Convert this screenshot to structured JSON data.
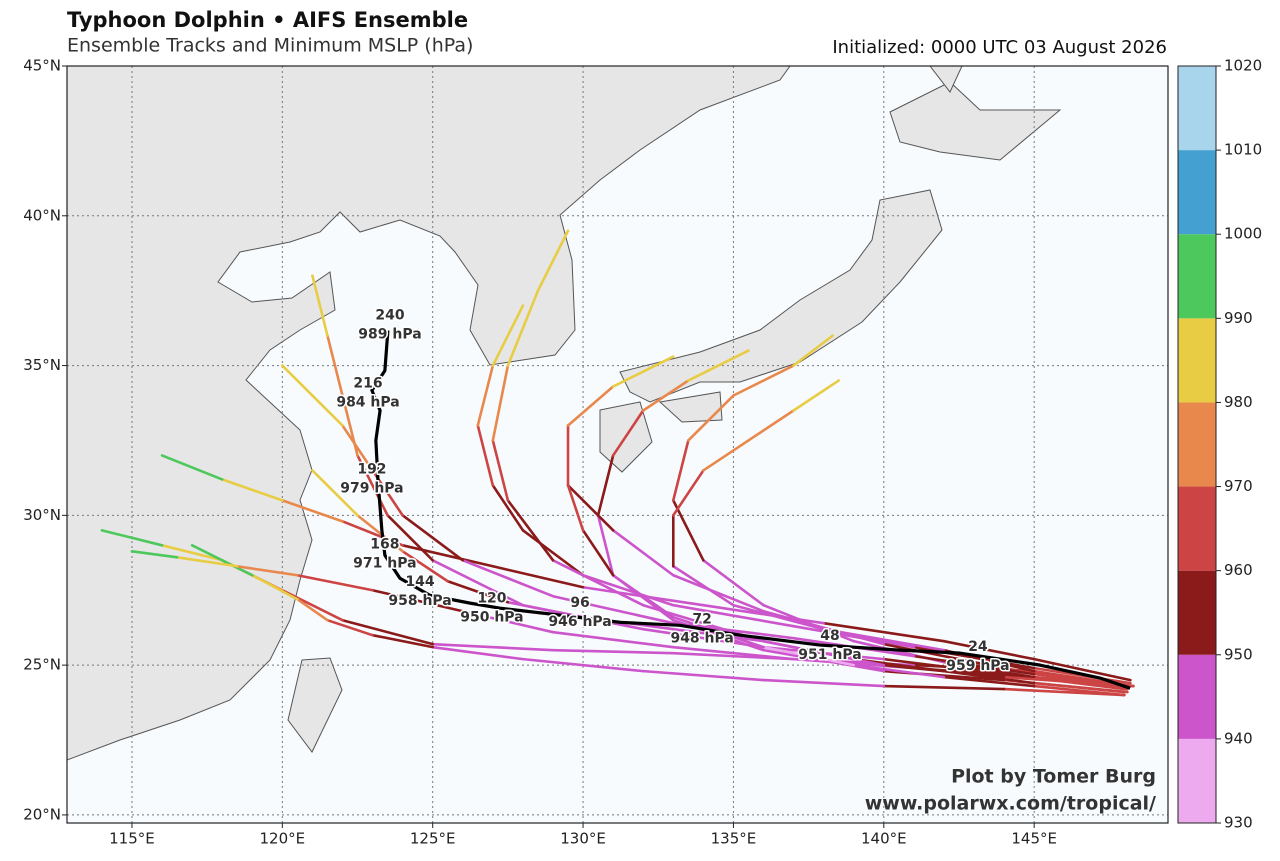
{
  "chart_data": {
    "type": "track-map",
    "title": "Typhoon Dolphin • AIFS Ensemble",
    "subtitle": "Ensemble Tracks and Minimum MSLP (hPa)",
    "initialized": "Initialized: 0000 UTC 03 August 2026",
    "credit": [
      "Plot by Tomer Burg",
      "www.polarwx.com/tropical/"
    ],
    "xlim": [
      112.84,
      149.45
    ],
    "ylim": [
      19.73,
      45
    ],
    "xticks": [
      {
        "value": 115,
        "label": "115°E"
      },
      {
        "value": 120,
        "label": "120°E"
      },
      {
        "value": 125,
        "label": "125°E"
      },
      {
        "value": 130,
        "label": "130°E"
      },
      {
        "value": 135,
        "label": "135°E"
      },
      {
        "value": 140,
        "label": "140°E"
      },
      {
        "value": 145,
        "label": "145°E"
      }
    ],
    "yticks": [
      {
        "value": 20,
        "label": "20°N"
      },
      {
        "value": 25,
        "label": "25°N"
      },
      {
        "value": 30,
        "label": "30°N"
      },
      {
        "value": 35,
        "label": "35°N"
      },
      {
        "value": 40,
        "label": "40°N"
      },
      {
        "value": 45,
        "label": "45°N"
      }
    ],
    "grid": true,
    "colorbar": {
      "levels": [
        930,
        940,
        950,
        960,
        970,
        980,
        990,
        1000,
        1010,
        1020
      ],
      "colors": [
        "#eeaaee",
        "#cc55cc",
        "#8b1a1a",
        "#cc4444",
        "#e8884c",
        "#e8cc44",
        "#4cc85c",
        "#44a0d0",
        "#a8d4ec"
      ]
    },
    "members": [
      {
        "lon": [
          148.3,
          145,
          141,
          137,
          133,
          129,
          125,
          122,
          120,
          118,
          116,
          114
        ],
        "lat": [
          24.3,
          24.8,
          25.0,
          25.2,
          25.4,
          25.5,
          25.7,
          26.5,
          27.5,
          28.5,
          29,
          29.5
        ],
        "mslp": [
          962,
          955,
          948,
          944,
          942,
          945,
          952,
          962,
          975,
          985,
          992,
          995
        ]
      },
      {
        "lon": [
          148.0,
          144,
          140,
          136,
          132,
          128,
          125,
          123.5,
          122.5,
          122,
          121.5,
          121
        ],
        "lat": [
          24.2,
          24.7,
          25.2,
          25.6,
          26.2,
          27.0,
          28.5,
          30,
          32,
          34,
          36,
          38
        ],
        "mslp": [
          960,
          954,
          947,
          943,
          941,
          944,
          955,
          965,
          972,
          978,
          983,
          988
        ]
      },
      {
        "lon": [
          148.2,
          145,
          141,
          137,
          133,
          130,
          128,
          127,
          126.5,
          127,
          128
        ],
        "lat": [
          24.4,
          24.9,
          25.6,
          26.3,
          27,
          28,
          29.5,
          31,
          33,
          35,
          37
        ],
        "mslp": [
          961,
          953,
          946,
          942,
          945,
          950,
          958,
          966,
          974,
          981,
          987
        ]
      },
      {
        "lon": [
          148.1,
          144,
          140,
          136,
          133,
          131,
          130.5,
          131,
          132,
          133.5,
          135.5
        ],
        "lat": [
          24.1,
          24.5,
          24.8,
          25.5,
          26.5,
          28,
          30,
          32,
          33.5,
          34.5,
          35.5
        ],
        "mslp": [
          962,
          951,
          944,
          940,
          942,
          948,
          958,
          968,
          976,
          982,
          988
        ]
      },
      {
        "lon": [
          148.3,
          145,
          142,
          139,
          136,
          134,
          133,
          133.5,
          135,
          137,
          138.3
        ],
        "lat": [
          24.3,
          24.6,
          25.1,
          25.8,
          27,
          28.5,
          30.5,
          32.5,
          34,
          35,
          36
        ],
        "mslp": [
          963,
          952,
          945,
          941,
          943,
          950,
          960,
          970,
          978,
          984,
          986
        ]
      },
      {
        "lon": [
          148.0,
          144,
          140,
          136,
          132,
          128,
          125,
          123,
          121.5,
          120.5,
          119,
          117
        ],
        "lat": [
          24.0,
          24.2,
          24.3,
          24.5,
          24.8,
          25.2,
          25.6,
          26,
          26.5,
          27.2,
          28,
          29
        ],
        "mslp": [
          960,
          952,
          944,
          940,
          941,
          946,
          955,
          966,
          978,
          986,
          992,
          996
        ]
      },
      {
        "lon": [
          148.2,
          145,
          142,
          138,
          134,
          130,
          127,
          124,
          122,
          120,
          118,
          116
        ],
        "lat": [
          24.5,
          25.2,
          25.8,
          26.4,
          27,
          27.6,
          28.3,
          29,
          29.8,
          30.5,
          31.2,
          32
        ],
        "mslp": [
          959,
          954,
          950,
          947,
          948,
          952,
          958,
          966,
          975,
          984,
          990,
          994
        ]
      },
      {
        "lon": [
          148.1,
          144,
          140,
          136,
          133,
          131,
          129.5,
          129.5,
          131,
          133
        ],
        "lat": [
          24.2,
          24.9,
          25.7,
          26.8,
          28,
          29.5,
          31,
          33,
          34.3,
          35.3
        ],
        "mslp": [
          961,
          953,
          946,
          943,
          947,
          955,
          965,
          974,
          980,
          984
        ]
      },
      {
        "lon": [
          148.0,
          145,
          142,
          139,
          136,
          133,
          130,
          127.5,
          125.5,
          124,
          122.5,
          121
        ],
        "lat": [
          24.1,
          24.4,
          24.8,
          25.2,
          25.8,
          26.2,
          26.6,
          27.1,
          27.8,
          28.8,
          30,
          31.5
        ],
        "mslp": [
          962,
          957,
          952,
          948,
          946,
          945,
          947,
          953,
          962,
          972,
          982,
          990
        ]
      },
      {
        "lon": [
          148.2,
          145,
          141,
          137,
          133,
          129,
          126,
          124,
          123,
          122,
          121,
          120
        ],
        "lat": [
          24.3,
          24.7,
          25.3,
          25.9,
          26.4,
          27.3,
          28.5,
          30,
          31.5,
          33,
          34,
          35
        ],
        "mslp": [
          960,
          953,
          946,
          942,
          942,
          947,
          956,
          966,
          973,
          980,
          985,
          988
        ]
      },
      {
        "lon": [
          148.3,
          145,
          141,
          137,
          133,
          129,
          126,
          123,
          120.5,
          118.5,
          116.5,
          115
        ],
        "lat": [
          24.3,
          24.6,
          24.9,
          25.2,
          25.6,
          26.1,
          26.8,
          27.5,
          28,
          28.3,
          28.6,
          28.8
        ],
        "mslp": [
          961,
          955,
          949,
          945,
          944,
          946,
          952,
          962,
          974,
          985,
          993,
          996
        ]
      },
      {
        "lon": [
          148.1,
          145,
          142,
          138,
          135,
          133,
          133,
          134,
          135.5,
          137,
          138.5
        ],
        "lat": [
          24.2,
          24.8,
          25.5,
          26.2,
          27,
          28.3,
          30,
          31.5,
          32.5,
          33.5,
          34.5
        ],
        "mslp": [
          960,
          953,
          947,
          943,
          944,
          951,
          961,
          971,
          979,
          985,
          988
        ]
      },
      {
        "lon": [
          148.2,
          144,
          140,
          136,
          132,
          129,
          127.5,
          127,
          127.5,
          128.5,
          129.5
        ],
        "lat": [
          24.3,
          24.6,
          25.0,
          25.8,
          27,
          28.5,
          30.5,
          32.5,
          35,
          37.5,
          39.5
        ],
        "mslp": [
          961,
          954,
          948,
          945,
          946,
          951,
          960,
          970,
          980,
          988,
          993
        ]
      },
      {
        "lon": [
          148.0,
          145,
          142,
          139,
          136,
          133,
          131,
          130,
          129.5
        ],
        "lat": [
          24.0,
          24.3,
          24.6,
          25,
          25.6,
          26.6,
          28,
          29.5,
          31
        ],
        "mslp": [
          962,
          950,
          942,
          938,
          940,
          946,
          955,
          964,
          970
        ]
      }
    ],
    "mean_track": {
      "color": "#000000",
      "lon": [
        148.19,
        147.19,
        145.2,
        142.54,
        140.54,
        137.88,
        135.22,
        133.22,
        131.23,
        129.23,
        127.24,
        126.24,
        124.91,
        123.91,
        123.41,
        123.31,
        123.18,
        123.11,
        123.25,
        122.98,
        123.41,
        123.51
      ],
      "lat": [
        24.23,
        24.57,
        25.0,
        25.4,
        25.5,
        25.67,
        26.0,
        26.33,
        26.43,
        26.67,
        26.9,
        27.07,
        27.33,
        27.9,
        28.67,
        29.5,
        31.17,
        32.5,
        33.5,
        34.17,
        34.83,
        36.17
      ]
    },
    "forecast_labels": [
      {
        "hour": 24,
        "mslp": 959,
        "mslp_label": "959 hPa",
        "lon": 143.13,
        "lat": 25.3
      },
      {
        "hour": 48,
        "mslp": 951,
        "mslp_label": "951 hPa",
        "lon": 138.21,
        "lat": 25.67
      },
      {
        "hour": 72,
        "mslp": 948,
        "mslp_label": "948 hPa",
        "lon": 133.96,
        "lat": 26.23
      },
      {
        "hour": 96,
        "mslp": 946,
        "mslp_label": "946 hPa",
        "lon": 129.9,
        "lat": 26.77
      },
      {
        "hour": 120,
        "mslp": 950,
        "mslp_label": "950 hPa",
        "lon": 126.97,
        "lat": 26.93
      },
      {
        "hour": 144,
        "mslp": 958,
        "mslp_label": "958 hPa",
        "lon": 124.58,
        "lat": 27.47
      },
      {
        "hour": 168,
        "mslp": 971,
        "mslp_label": "971 hPa",
        "lon": 123.41,
        "lat": 28.73
      },
      {
        "hour": 192,
        "mslp": 979,
        "mslp_label": "979 hPa",
        "lon": 122.98,
        "lat": 31.23
      },
      {
        "hour": 216,
        "mslp": 984,
        "mslp_label": "984 hPa",
        "lon": 122.85,
        "lat": 34.1
      },
      {
        "hour": 240,
        "mslp": 989,
        "mslp_label": "989 hPa",
        "lon": 123.58,
        "lat": 36.37
      }
    ]
  }
}
